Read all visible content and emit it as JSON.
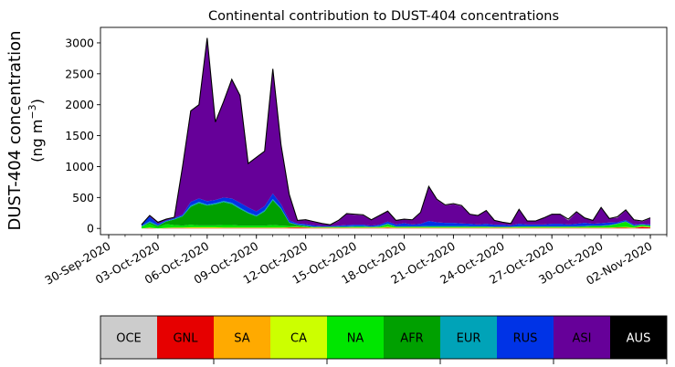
{
  "chart_data": {
    "type": "area",
    "stacked": true,
    "title": "Continental contribution to DUST-404 concentrations",
    "ylabel_line1": "DUST-404 concentration",
    "ylabel_line2_prefix": "(ng m",
    "ylabel_line2_sup": "−3",
    "ylabel_line2_suffix": ")",
    "xlabel": "",
    "ylim": [
      -100,
      3250
    ],
    "yticks": [
      0,
      500,
      1000,
      1500,
      2000,
      2500,
      3000
    ],
    "x_start": "2020-10-02",
    "x_step_days": 0.5,
    "x_range": [
      "2020-09-29T12:00",
      "2020-11-03T00:00"
    ],
    "xtick_labels": [
      "30-Sep-2020",
      "03-Oct-2020",
      "06-Oct-2020",
      "09-Oct-2020",
      "12-Oct-2020",
      "15-Oct-2020",
      "18-Oct-2020",
      "21-Oct-2020",
      "24-Oct-2020",
      "27-Oct-2020",
      "30-Oct-2020",
      "02-Nov-2020"
    ],
    "xtick_dates": [
      "2020-09-30",
      "2020-10-03",
      "2020-10-06",
      "2020-10-09",
      "2020-10-12",
      "2020-10-15",
      "2020-10-18",
      "2020-10-21",
      "2020-10-24",
      "2020-10-27",
      "2020-10-30",
      "2020-11-02"
    ],
    "grid": false,
    "legend_position": "bottom",
    "total": [
      60,
      210,
      100,
      150,
      180,
      1000,
      1900,
      2000,
      3080,
      1720,
      2050,
      2410,
      2150,
      1050,
      1150,
      1250,
      2580,
      1350,
      550,
      130,
      140,
      110,
      80,
      60,
      130,
      240,
      230,
      220,
      140,
      210,
      280,
      130,
      150,
      140,
      260,
      680,
      470,
      380,
      400,
      370,
      230,
      210,
      290,
      130,
      100,
      80,
      310,
      120,
      120,
      170,
      230,
      230,
      150,
      270,
      170,
      130,
      340,
      160,
      190,
      300,
      140,
      120,
      170
    ],
    "series": [
      {
        "name": "OCE",
        "values": [
          0,
          0,
          0,
          0,
          0,
          0,
          0,
          0,
          0,
          0,
          0,
          0,
          0,
          0,
          0,
          0,
          0,
          0,
          0,
          0,
          0,
          0,
          0,
          0,
          0,
          0,
          0,
          0,
          0,
          0,
          0,
          0,
          0,
          0,
          0,
          0,
          0,
          0,
          0,
          0,
          0,
          0,
          0,
          0,
          0,
          0,
          0,
          0,
          0,
          0,
          0,
          0,
          0,
          0,
          0,
          0,
          0,
          0,
          0,
          0,
          0,
          0,
          0
        ]
      },
      {
        "name": "GNL",
        "values": [
          0,
          5,
          0,
          5,
          5,
          5,
          5,
          5,
          5,
          5,
          5,
          5,
          5,
          5,
          5,
          5,
          5,
          5,
          10,
          15,
          10,
          5,
          5,
          5,
          5,
          5,
          5,
          5,
          5,
          5,
          10,
          5,
          5,
          5,
          5,
          5,
          5,
          5,
          5,
          5,
          5,
          5,
          5,
          5,
          5,
          5,
          5,
          5,
          5,
          5,
          5,
          5,
          5,
          5,
          5,
          5,
          5,
          5,
          10,
          10,
          5,
          25,
          15
        ]
      },
      {
        "name": "SA",
        "values": [
          0,
          5,
          0,
          0,
          5,
          5,
          5,
          5,
          5,
          5,
          5,
          5,
          5,
          5,
          5,
          5,
          5,
          5,
          5,
          5,
          5,
          5,
          5,
          5,
          5,
          5,
          5,
          5,
          5,
          5,
          5,
          5,
          5,
          5,
          5,
          5,
          5,
          5,
          5,
          5,
          5,
          5,
          5,
          5,
          5,
          5,
          5,
          5,
          5,
          5,
          5,
          5,
          5,
          5,
          5,
          5,
          5,
          5,
          5,
          5,
          5,
          5,
          5
        ]
      },
      {
        "name": "CA",
        "values": [
          0,
          5,
          0,
          5,
          5,
          5,
          10,
          10,
          10,
          10,
          5,
          5,
          5,
          5,
          5,
          5,
          5,
          5,
          5,
          5,
          5,
          5,
          5,
          5,
          5,
          5,
          5,
          5,
          5,
          5,
          15,
          5,
          5,
          5,
          5,
          5,
          5,
          5,
          5,
          5,
          5,
          5,
          5,
          5,
          5,
          5,
          5,
          5,
          5,
          5,
          5,
          5,
          5,
          5,
          5,
          5,
          5,
          5,
          5,
          10,
          5,
          5,
          5
        ]
      },
      {
        "name": "NA",
        "values": [
          30,
          60,
          20,
          60,
          40,
          30,
          40,
          30,
          30,
          30,
          40,
          40,
          30,
          30,
          30,
          30,
          40,
          30,
          20,
          10,
          10,
          5,
          5,
          5,
          5,
          5,
          10,
          10,
          5,
          10,
          30,
          10,
          10,
          10,
          10,
          10,
          10,
          10,
          10,
          10,
          10,
          10,
          10,
          5,
          5,
          5,
          10,
          10,
          10,
          10,
          10,
          10,
          10,
          10,
          15,
          20,
          20,
          30,
          50,
          80,
          20,
          20,
          15
        ]
      },
      {
        "name": "AFR",
        "values": [
          0,
          20,
          20,
          40,
          90,
          150,
          290,
          360,
          320,
          340,
          370,
          340,
          270,
          200,
          150,
          230,
          400,
          270,
          50,
          20,
          10,
          5,
          5,
          5,
          5,
          5,
          5,
          5,
          5,
          5,
          10,
          5,
          5,
          5,
          5,
          5,
          5,
          5,
          5,
          5,
          5,
          5,
          5,
          5,
          5,
          5,
          5,
          5,
          5,
          5,
          5,
          5,
          5,
          5,
          5,
          5,
          5,
          5,
          5,
          5,
          5,
          5,
          5
        ]
      },
      {
        "name": "EUR",
        "values": [
          10,
          20,
          10,
          10,
          10,
          10,
          20,
          20,
          15,
          20,
          20,
          20,
          20,
          15,
          15,
          20,
          20,
          15,
          10,
          10,
          10,
          5,
          5,
          5,
          10,
          10,
          10,
          10,
          5,
          10,
          10,
          5,
          5,
          5,
          5,
          10,
          10,
          10,
          10,
          10,
          5,
          5,
          5,
          5,
          5,
          5,
          5,
          5,
          5,
          5,
          5,
          5,
          5,
          5,
          5,
          5,
          5,
          5,
          5,
          5,
          5,
          5,
          5
        ]
      },
      {
        "name": "RUS",
        "values": [
          30,
          75,
          25,
          10,
          15,
          20,
          60,
          55,
          55,
          50,
          55,
          70,
          80,
          80,
          65,
          65,
          90,
          60,
          30,
          15,
          20,
          20,
          10,
          10,
          10,
          20,
          20,
          20,
          15,
          20,
          30,
          30,
          50,
          30,
          40,
          80,
          60,
          50,
          50,
          40,
          40,
          30,
          40,
          30,
          30,
          20,
          40,
          30,
          30,
          30,
          40,
          40,
          30,
          40,
          50,
          30,
          40,
          40,
          20,
          20,
          20,
          10,
          15
        ]
      },
      {
        "name": "ASI",
        "values": [
          -10,
          15,
          20,
          15,
          5,
          770,
          1465,
          1510,
          2635,
          1255,
          1545,
          1920,
          1730,
          705,
          870,
          885,
          2010,
          945,
          415,
          45,
          65,
          55,
          35,
          15,
          75,
          180,
          160,
          150,
          90,
          145,
          165,
          60,
          60,
          70,
          180,
          555,
          360,
          280,
          300,
          280,
          150,
          140,
          210,
          70,
          40,
          25,
          230,
          50,
          50,
          100,
          150,
          150,
          65,
          185,
          75,
          55,
          250,
          65,
          75,
          155,
          70,
          35,
          95
        ]
      },
      {
        "name": "AUS",
        "values": [
          0,
          0,
          0,
          0,
          0,
          0,
          0,
          0,
          0,
          0,
          0,
          0,
          0,
          0,
          0,
          0,
          0,
          0,
          0,
          0,
          0,
          0,
          0,
          0,
          0,
          0,
          0,
          0,
          0,
          0,
          0,
          0,
          0,
          0,
          0,
          0,
          0,
          0,
          0,
          0,
          0,
          0,
          0,
          0,
          0,
          0,
          0,
          0,
          0,
          0,
          0,
          0,
          0,
          0,
          0,
          0,
          0,
          0,
          0,
          0,
          0,
          0,
          0
        ]
      }
    ],
    "colors": {
      "OCE": "#cccccc",
      "GNL": "#e60000",
      "SA": "#ffaa00",
      "CA": "#ccff00",
      "NA": "#00e600",
      "AFR": "#00a000",
      "EUR": "#00a3b8",
      "RUS": "#0033e6",
      "ASI": "#660099",
      "AUS": "#000000"
    },
    "legend_text_colors": {
      "OCE": "#000000",
      "GNL": "#000000",
      "SA": "#000000",
      "CA": "#000000",
      "NA": "#000000",
      "AFR": "#000000",
      "EUR": "#000000",
      "RUS": "#000000",
      "ASI": "#000000",
      "AUS": "#ffffff"
    }
  }
}
